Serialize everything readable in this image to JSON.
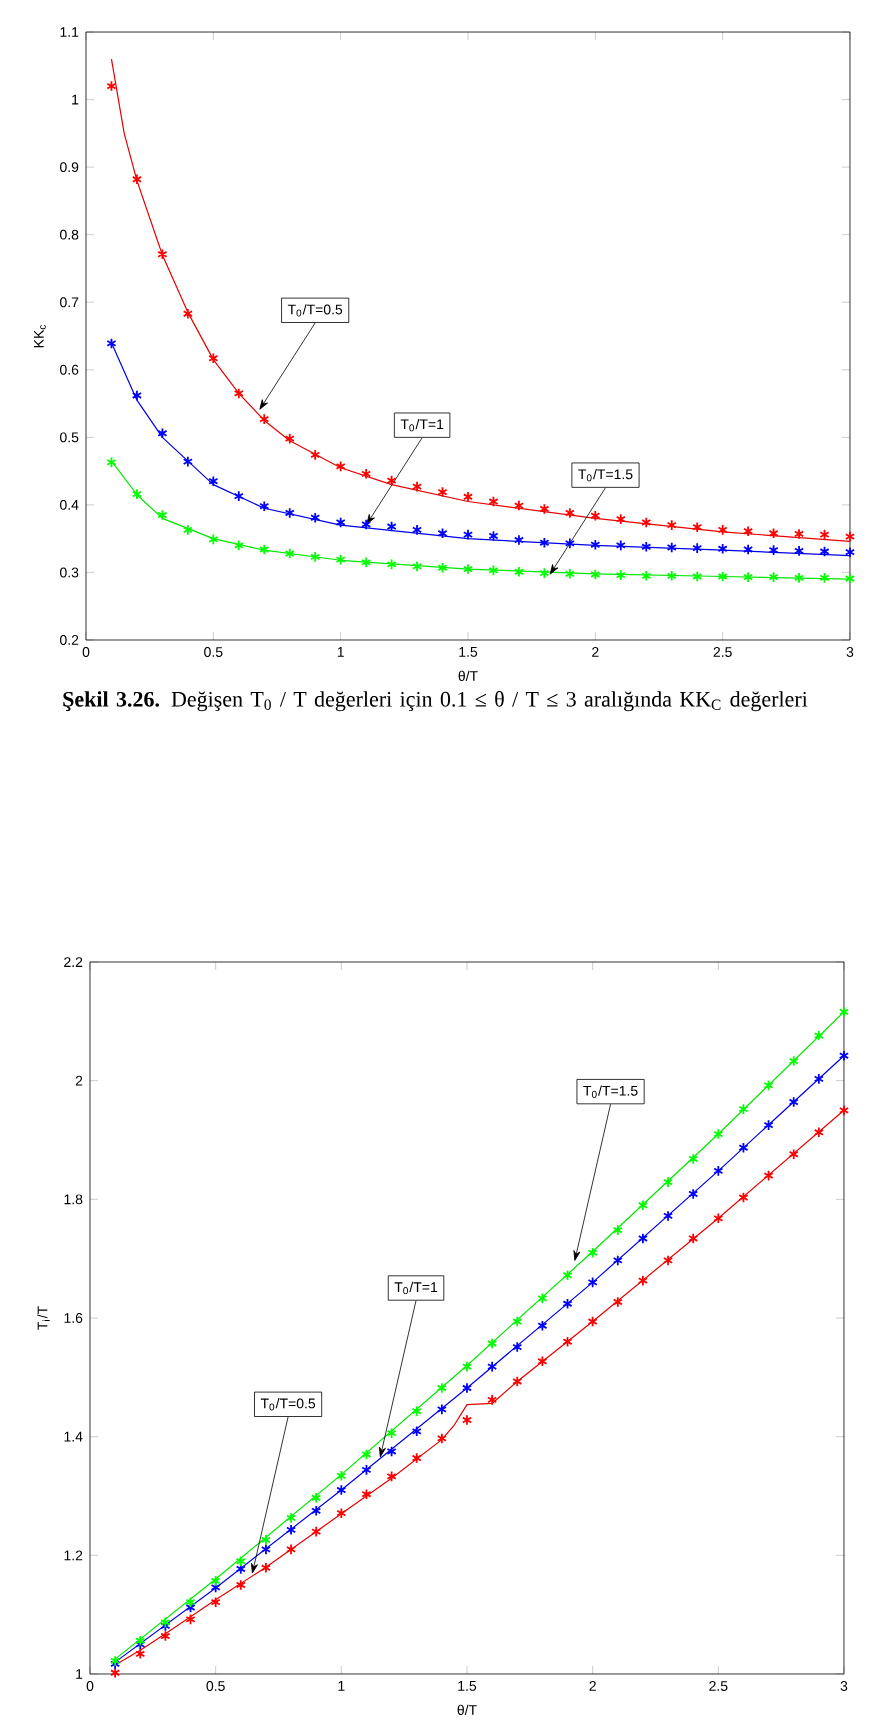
{
  "chart_data": [
    {
      "type": "line",
      "ylabel": "KK$_{c}$",
      "xlabel": "θ/T",
      "xlim": [
        0,
        3
      ],
      "ylim": [
        0.2,
        1.1
      ],
      "xticks": [
        0,
        0.5,
        1,
        1.5,
        2,
        2.5,
        3
      ],
      "yticks": [
        0.2,
        0.3,
        0.4,
        0.5,
        0.6,
        0.7,
        0.8,
        0.9,
        1,
        1.1
      ],
      "series": [
        {
          "type": "line",
          "color": "#e60000",
          "marker": "none",
          "x": [
            0.1,
            0.15,
            0.2,
            0.3,
            0.4,
            0.5,
            0.6,
            0.7,
            0.8,
            1.0,
            1.2,
            1.5,
            2.0,
            2.5,
            3.0
          ],
          "values": [
            1.06,
            0.95,
            0.88,
            0.77,
            0.685,
            0.615,
            0.565,
            0.525,
            0.495,
            0.455,
            0.43,
            0.405,
            0.38,
            0.36,
            0.346
          ]
        },
        {
          "type": "scatter",
          "color": "#ff0000",
          "marker": "cross",
          "x": [
            0.1,
            0.2,
            0.3,
            0.4,
            0.5,
            0.6,
            0.7,
            0.8,
            0.9,
            1.0,
            1.1,
            1.2,
            1.3,
            1.4,
            1.5,
            1.6,
            1.7,
            1.8,
            1.9,
            2.0,
            2.1,
            2.2,
            2.3,
            2.4,
            2.5,
            2.6,
            2.7,
            2.8,
            2.9,
            3.0
          ],
          "values": [
            1.02,
            0.882,
            0.771,
            0.683,
            0.617,
            0.565,
            0.527,
            0.498,
            0.474,
            0.457,
            0.446,
            0.436,
            0.427,
            0.419,
            0.412,
            0.405,
            0.399,
            0.394,
            0.388,
            0.384,
            0.379,
            0.374,
            0.37,
            0.367,
            0.363,
            0.361,
            0.358,
            0.357,
            0.356,
            0.353
          ]
        },
        {
          "type": "line",
          "color": "#0000e6",
          "marker": "none",
          "x": [
            0.1,
            0.2,
            0.3,
            0.5,
            0.7,
            1.0,
            1.5,
            2.0,
            2.5,
            3.0
          ],
          "values": [
            0.64,
            0.555,
            0.5,
            0.43,
            0.395,
            0.37,
            0.35,
            0.34,
            0.333,
            0.325
          ]
        },
        {
          "type": "scatter",
          "color": "#0000ff",
          "marker": "cross",
          "x": [
            0.1,
            0.2,
            0.3,
            0.4,
            0.5,
            0.6,
            0.7,
            0.8,
            0.9,
            1.0,
            1.1,
            1.2,
            1.3,
            1.4,
            1.5,
            1.6,
            1.7,
            1.8,
            1.9,
            2.0,
            2.1,
            2.2,
            2.3,
            2.4,
            2.5,
            2.6,
            2.7,
            2.8,
            2.9,
            3.0
          ],
          "values": [
            0.639,
            0.562,
            0.506,
            0.464,
            0.435,
            0.413,
            0.398,
            0.388,
            0.381,
            0.374,
            0.371,
            0.368,
            0.363,
            0.358,
            0.356,
            0.354,
            0.348,
            0.344,
            0.343,
            0.341,
            0.34,
            0.338,
            0.337,
            0.336,
            0.335,
            0.334,
            0.333,
            0.332,
            0.331,
            0.33
          ]
        },
        {
          "type": "line",
          "color": "#00e600",
          "marker": "none",
          "x": [
            0.1,
            0.2,
            0.3,
            0.5,
            0.7,
            1.0,
            1.5,
            2.0,
            2.5,
            3.0
          ],
          "values": [
            0.465,
            0.415,
            0.38,
            0.35,
            0.333,
            0.318,
            0.305,
            0.298,
            0.294,
            0.29
          ]
        },
        {
          "type": "scatter",
          "color": "#00ff00",
          "marker": "cross",
          "x": [
            0.1,
            0.2,
            0.3,
            0.4,
            0.5,
            0.6,
            0.7,
            0.8,
            0.9,
            1.0,
            1.1,
            1.2,
            1.3,
            1.4,
            1.5,
            1.6,
            1.7,
            1.8,
            1.9,
            2.0,
            2.1,
            2.2,
            2.3,
            2.4,
            2.5,
            2.6,
            2.7,
            2.8,
            2.9,
            3.0
          ],
          "values": [
            0.463,
            0.416,
            0.385,
            0.363,
            0.349,
            0.34,
            0.334,
            0.328,
            0.323,
            0.319,
            0.315,
            0.312,
            0.309,
            0.307,
            0.305,
            0.303,
            0.301,
            0.299,
            0.298,
            0.297,
            0.296,
            0.295,
            0.295,
            0.294,
            0.294,
            0.293,
            0.293,
            0.292,
            0.292,
            0.291
          ]
        }
      ],
      "annotations": [
        {
          "text": "T$_{0}$/T=0.5",
          "x": 0.68,
          "y": 0.54
        },
        {
          "text": "T$_{0}$/T=1",
          "x": 1.1,
          "y": 0.37
        },
        {
          "text": "T$_{0}$/T=1.5",
          "x": 1.82,
          "y": 0.296
        },
        "**Şekil 3.26.** Değişen T$_{0}$ / T değerleri için 0.1 ≤ θ / T ≤ 3 aralığında KK$_{C}$ değerleri"
      ]
    },
    {
      "type": "line",
      "ylabel": "T$_{i}$/T",
      "xlabel": "θ/T",
      "xlim": [
        0,
        3
      ],
      "ylim": [
        1,
        2.2
      ],
      "xticks": [
        0,
        0.5,
        1,
        1.5,
        2,
        2.5,
        3
      ],
      "yticks": [
        1,
        1.2,
        1.4,
        1.6,
        1.8,
        2,
        2.2
      ],
      "series": [
        {
          "type": "line",
          "color": "#e60000",
          "marker": "none",
          "x": [
            0.1,
            0.2,
            0.3,
            0.5,
            0.7,
            1.0,
            1.2,
            1.4,
            1.45,
            1.5,
            1.6,
            1.7,
            2.0,
            2.5,
            3.0
          ],
          "values": [
            1.015,
            1.04,
            1.068,
            1.125,
            1.18,
            1.27,
            1.33,
            1.395,
            1.42,
            1.454,
            1.456,
            1.493,
            1.594,
            1.768,
            1.95
          ]
        },
        {
          "type": "scatter",
          "color": "#ff0000",
          "marker": "cross",
          "x": [
            0.1,
            0.2,
            0.3,
            0.4,
            0.5,
            0.6,
            0.7,
            0.8,
            0.9,
            1.0,
            1.1,
            1.2,
            1.3,
            1.4,
            1.5,
            1.6,
            1.7,
            1.8,
            1.9,
            2.0,
            2.1,
            2.2,
            2.3,
            2.4,
            2.5,
            2.6,
            2.7,
            2.8,
            2.9,
            3.0
          ],
          "values": [
            1.002,
            1.034,
            1.064,
            1.092,
            1.121,
            1.15,
            1.179,
            1.21,
            1.24,
            1.271,
            1.303,
            1.333,
            1.364,
            1.397,
            1.428,
            1.462,
            1.493,
            1.527,
            1.56,
            1.594,
            1.627,
            1.663,
            1.697,
            1.734,
            1.768,
            1.803,
            1.84,
            1.876,
            1.913,
            1.95
          ]
        },
        {
          "type": "line",
          "color": "#0000e6",
          "marker": "none",
          "x": [
            0.1,
            0.5,
            1.0,
            1.5,
            2.0,
            2.5,
            3.0
          ],
          "values": [
            1.02,
            1.145,
            1.31,
            1.482,
            1.66,
            1.848,
            2.042
          ]
        },
        {
          "type": "scatter",
          "color": "#0000ff",
          "marker": "cross",
          "x": [
            0.1,
            0.2,
            0.3,
            0.4,
            0.5,
            0.6,
            0.7,
            0.8,
            0.9,
            1.0,
            1.1,
            1.2,
            1.3,
            1.4,
            1.5,
            1.6,
            1.7,
            1.8,
            1.9,
            2.0,
            2.1,
            2.2,
            2.3,
            2.4,
            2.5,
            2.6,
            2.7,
            2.8,
            2.9,
            3.0
          ],
          "values": [
            1.017,
            1.05,
            1.081,
            1.112,
            1.146,
            1.177,
            1.21,
            1.243,
            1.275,
            1.31,
            1.344,
            1.375,
            1.409,
            1.446,
            1.482,
            1.518,
            1.551,
            1.587,
            1.624,
            1.66,
            1.697,
            1.734,
            1.772,
            1.809,
            1.848,
            1.887,
            1.925,
            1.964,
            2.003,
            2.042
          ]
        },
        {
          "type": "line",
          "color": "#00e600",
          "marker": "none",
          "x": [
            0.1,
            0.5,
            1.0,
            1.5,
            2.0,
            2.5,
            3.0
          ],
          "values": [
            1.025,
            1.16,
            1.336,
            1.52,
            1.712,
            1.91,
            2.116
          ]
        },
        {
          "type": "scatter",
          "color": "#00ff00",
          "marker": "cross",
          "x": [
            0.1,
            0.2,
            0.3,
            0.4,
            0.5,
            0.6,
            0.7,
            0.8,
            0.9,
            1.0,
            1.1,
            1.2,
            1.3,
            1.4,
            1.5,
            1.6,
            1.7,
            1.8,
            1.9,
            2.0,
            2.1,
            2.2,
            2.3,
            2.4,
            2.5,
            2.6,
            2.7,
            2.8,
            2.9,
            3.0
          ],
          "values": [
            1.022,
            1.056,
            1.087,
            1.121,
            1.157,
            1.19,
            1.226,
            1.263,
            1.297,
            1.334,
            1.37,
            1.406,
            1.443,
            1.482,
            1.518,
            1.557,
            1.594,
            1.633,
            1.672,
            1.71,
            1.748,
            1.79,
            1.829,
            1.868,
            1.91,
            1.952,
            1.992,
            2.033,
            2.076,
            2.116
          ]
        }
      ],
      "annotations": [
        {
          "text": "T$_{0}$/T=0.5",
          "x": 0.645,
          "y": 1.168
        },
        {
          "text": "T$_{0}$/T=1",
          "x": 1.154,
          "y": 1.364
        },
        {
          "text": "T$_{0}$/T=1.5",
          "x": 1.928,
          "y": 1.695
        }
      ]
    }
  ]
}
